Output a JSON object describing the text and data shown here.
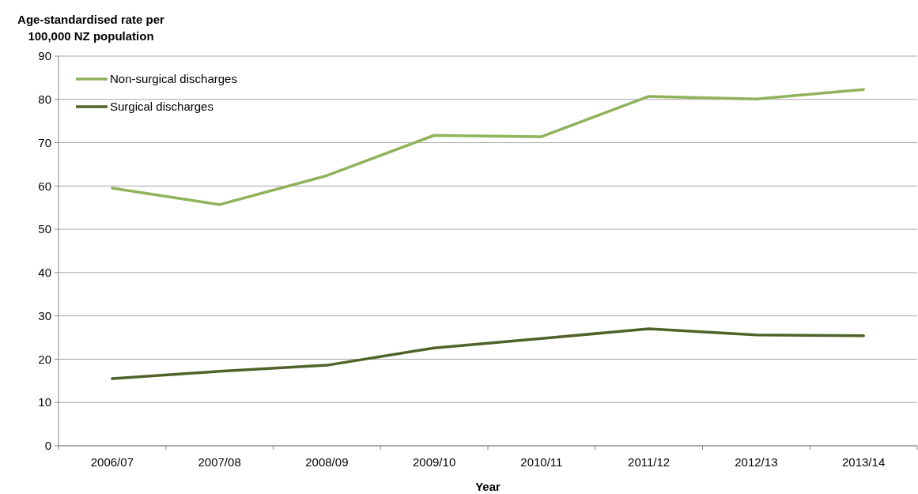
{
  "chart_data": {
    "type": "line",
    "xlabel": "Year",
    "ylabel": "Age-standardised rate per 100,000 NZ population",
    "categories": [
      "2006/07",
      "2007/08",
      "2008/09",
      "2009/10",
      "2010/11",
      "2011/12",
      "2012/13",
      "2013/14"
    ],
    "series": [
      {
        "name": "Non-surgical discharges",
        "color": "#8fb35a",
        "values": [
          59.5,
          55.7,
          62.4,
          71.7,
          71.4,
          80.7,
          80.1,
          82.3
        ]
      },
      {
        "name": "Surgical discharges",
        "color": "#4f6228",
        "values": [
          15.5,
          17.2,
          18.6,
          22.6,
          24.8,
          27.0,
          25.6,
          25.4
        ]
      }
    ],
    "ylim": [
      0,
      90
    ],
    "yticks": [
      0,
      10,
      20,
      30,
      40,
      50,
      60,
      70,
      80,
      90
    ],
    "grid": "y",
    "legend": "top left",
    "marker": "none",
    "line_style": "solid"
  }
}
